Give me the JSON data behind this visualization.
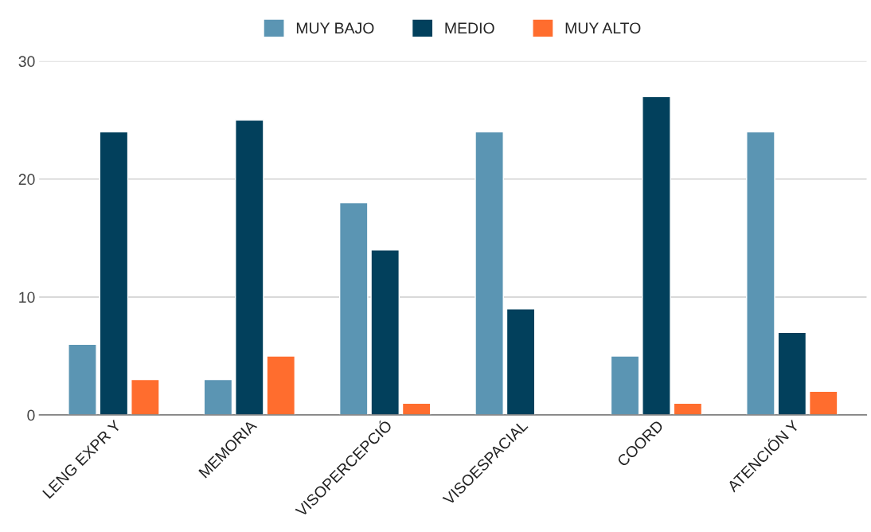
{
  "chart_data": {
    "type": "bar",
    "categories": [
      "LENG EXPR Y",
      "MEMORIA",
      "VISOPERCEPCIÓ",
      "VISOESPACIAL",
      "COORD",
      "ATENCIÓN Y"
    ],
    "series": [
      {
        "name": "MUY BAJO",
        "color": "#5b95b3",
        "values": [
          6,
          3,
          18,
          24,
          5,
          24
        ]
      },
      {
        "name": "MEDIO",
        "color": "#02405c",
        "values": [
          24,
          25,
          14,
          9,
          27,
          7
        ]
      },
      {
        "name": "MUY ALTO",
        "color": "#ff6d2e",
        "values": [
          3,
          5,
          1,
          null,
          1,
          2
        ]
      }
    ],
    "ylim": [
      0,
      30
    ],
    "yticks": [
      0,
      10,
      20,
      30
    ],
    "grid": "y",
    "legend": "top"
  }
}
